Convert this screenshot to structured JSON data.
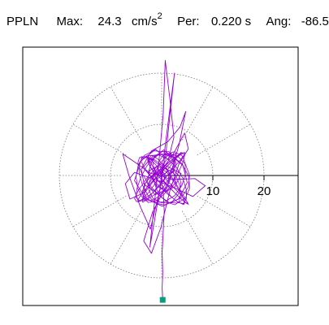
{
  "header": {
    "station": "PPLN",
    "max_label": "Max:",
    "max_value": "24.3",
    "max_unit": "cm/s",
    "max_unit_exp": "2",
    "per_label": "Per:",
    "per_value": "0.220 s",
    "ang_label": "Ang:",
    "ang_value": "-86.5"
  },
  "chart_data": {
    "type": "polar-particle-motion",
    "max": 24.3,
    "units": "cm/s^2",
    "period_s": 0.22,
    "angle_deg": -86.5,
    "radial_range": [
      0,
      25
    ],
    "radial_rings": [
      10,
      20
    ],
    "radial_tick_labels": [
      "10",
      "20"
    ],
    "spoke_step_deg": 30,
    "grid": true,
    "trace_color": "#9400d3",
    "peak_marker_color": "#00a07a",
    "peak_point": {
      "x": 0.2,
      "y": -24.3
    },
    "trace": [
      [
        0,
        0
      ],
      [
        2.1,
        1.3
      ],
      [
        3.8,
        0.4
      ],
      [
        2.6,
        -2.2
      ],
      [
        -0.5,
        -3.6
      ],
      [
        -3.4,
        -1.8
      ],
      [
        -4.0,
        1.2
      ],
      [
        -1.6,
        3.9
      ],
      [
        1.4,
        4.3
      ],
      [
        4.1,
        2.2
      ],
      [
        5.0,
        -1.4
      ],
      [
        3.3,
        -4.6
      ],
      [
        0.1,
        -6.0
      ],
      [
        -3.2,
        -4.4
      ],
      [
        -5.3,
        -1.0
      ],
      [
        -4.1,
        2.8
      ],
      [
        -1.2,
        5.1
      ],
      [
        1.3,
        3.1
      ],
      [
        2.4,
        7.5
      ],
      [
        1.6,
        15.0
      ],
      [
        0.7,
        22.5
      ],
      [
        0.3,
        12.0
      ],
      [
        -0.6,
        2.0
      ],
      [
        -1.7,
        -8.0
      ],
      [
        -2.3,
        -14.0
      ],
      [
        -1.0,
        -6.5
      ],
      [
        0.8,
        4.0
      ],
      [
        1.9,
        14.5
      ],
      [
        2.5,
        20.0
      ],
      [
        1.1,
        9.0
      ],
      [
        -0.4,
        -3.0
      ],
      [
        -2.2,
        -10.5
      ],
      [
        -4.2,
        -6.0
      ],
      [
        -6.4,
        0.0
      ],
      [
        -7.6,
        4.2
      ],
      [
        -5.5,
        2.8
      ],
      [
        -2.3,
        0.5
      ],
      [
        2.0,
        -0.8
      ],
      [
        6.5,
        -0.6
      ],
      [
        8.5,
        -2.0
      ],
      [
        6.1,
        -4.1
      ],
      [
        2.5,
        -2.4
      ],
      [
        -1.5,
        -0.8
      ],
      [
        -3.8,
        1.7
      ],
      [
        -2.0,
        4.8
      ],
      [
        1.2,
        6.6
      ],
      [
        3.6,
        9.5
      ],
      [
        4.7,
        12.5
      ],
      [
        3.4,
        6.0
      ],
      [
        1.3,
        -1.2
      ],
      [
        -1.8,
        -7.2
      ],
      [
        -3.5,
        -12.8
      ],
      [
        -2.0,
        -15.2
      ],
      [
        -0.1,
        -10.0
      ],
      [
        1.6,
        -3.0
      ],
      [
        3.4,
        2.3
      ],
      [
        5.2,
        5.2
      ],
      [
        4.5,
        8.3
      ],
      [
        2.2,
        4.1
      ],
      [
        -0.6,
        0.2
      ],
      [
        -3.3,
        -3.3
      ],
      [
        -6.2,
        -4.6
      ],
      [
        -7.1,
        -1.6
      ],
      [
        -5.3,
        0.6
      ],
      [
        -2.1,
        -0.5
      ],
      [
        0.6,
        1.9
      ],
      [
        2.4,
        3.4
      ],
      [
        0.4,
        5.0
      ],
      [
        -1.8,
        3.1
      ],
      [
        -2.6,
        0.6
      ],
      [
        -1.1,
        -1.9
      ],
      [
        1.0,
        -3.2
      ],
      [
        2.8,
        -1.4
      ],
      [
        2.2,
        1.2
      ],
      [
        0.0,
        2.3
      ],
      [
        -2.3,
        1.0
      ],
      [
        -2.9,
        -1.4
      ],
      [
        -1.3,
        -3.8
      ],
      [
        0.9,
        -2.7
      ],
      [
        1.8,
        -0.3
      ],
      [
        1.0,
        1.4
      ],
      [
        -0.7,
        1.7
      ],
      [
        -1.5,
        0.3
      ],
      [
        -0.9,
        -1.0
      ],
      [
        0.4,
        -1.2
      ],
      [
        0.8,
        -0.1
      ],
      [
        0.3,
        0.6
      ],
      [
        -0.2,
        0.4
      ],
      [
        0.3,
        -3.0
      ],
      [
        0.5,
        -7.0
      ],
      [
        0.3,
        -11.0
      ],
      [
        0.1,
        -15.0
      ],
      [
        0.2,
        -19.0
      ],
      [
        0.1,
        -22.0
      ],
      [
        0.2,
        -24.3
      ]
    ]
  }
}
